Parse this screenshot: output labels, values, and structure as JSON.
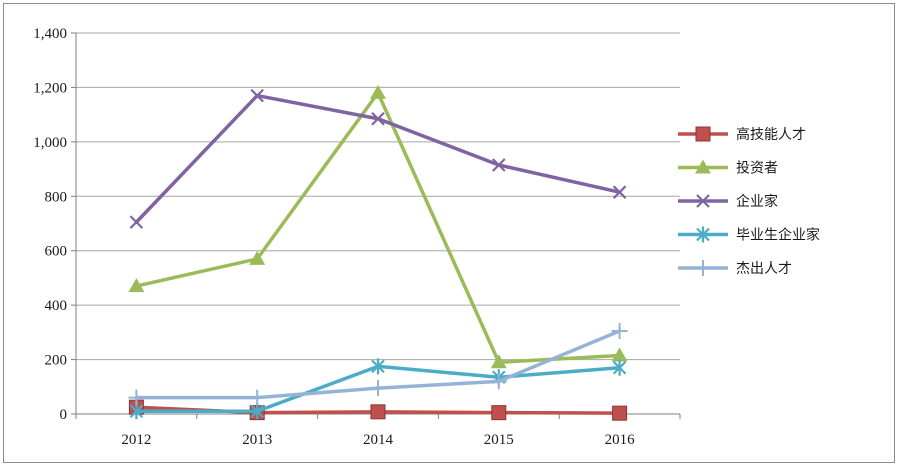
{
  "chart_data": {
    "type": "line",
    "title": "",
    "xlabel": "",
    "ylabel": "",
    "categories": [
      "2012",
      "2013",
      "2014",
      "2015",
      "2016"
    ],
    "ylim": [
      0,
      1400
    ],
    "yticks": [
      0,
      200,
      400,
      600,
      800,
      1000,
      1200,
      1400
    ],
    "ytick_labels": [
      "0",
      "200",
      "400",
      "600",
      "800",
      "1,000",
      "1,200",
      "1,400"
    ],
    "grid": "horizontal",
    "legend_position": "right",
    "series": [
      {
        "name": "高技能人才",
        "color": "#c0504d",
        "marker": "square",
        "values": [
          25,
          5,
          8,
          5,
          3
        ]
      },
      {
        "name": "投资者",
        "color": "#9bbb59",
        "marker": "triangle",
        "values": [
          470,
          570,
          1180,
          190,
          215
        ]
      },
      {
        "name": "企业家",
        "color": "#8064a2",
        "marker": "x",
        "values": [
          705,
          1170,
          1085,
          915,
          815
        ]
      },
      {
        "name": "毕业生企业家",
        "color": "#4bacc6",
        "marker": "asterisk",
        "values": [
          10,
          10,
          175,
          135,
          170
        ]
      },
      {
        "name": "杰出人才",
        "color": "#95b3d7",
        "marker": "plus",
        "values": [
          60,
          60,
          95,
          120,
          305
        ]
      }
    ]
  }
}
